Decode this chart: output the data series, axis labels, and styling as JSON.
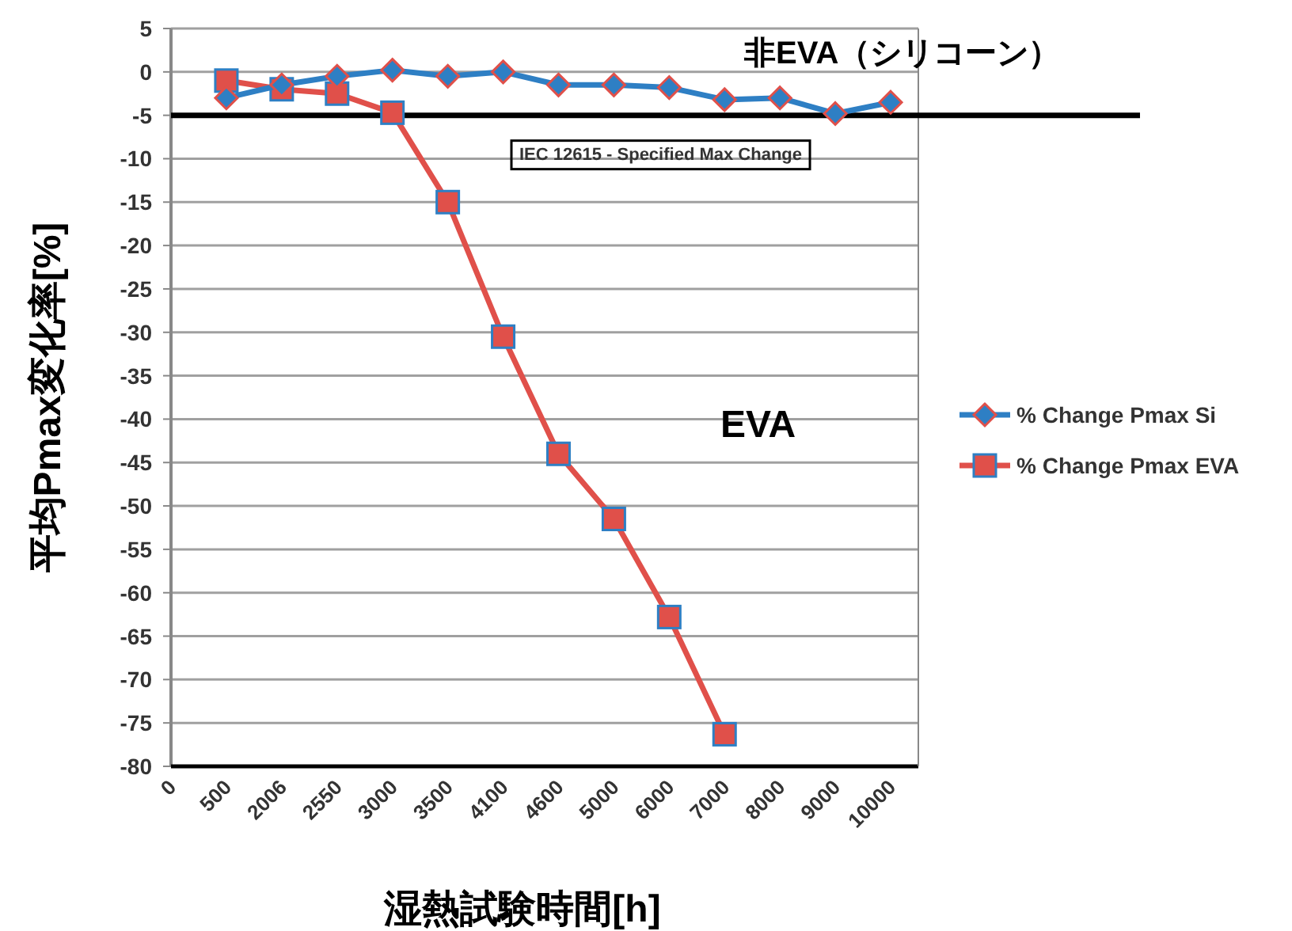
{
  "chart_data": {
    "type": "line",
    "xlabel": "湿熱試験時間[h]",
    "ylabel": "平均Pmax変化率[%]",
    "categories": [
      "0",
      "500",
      "2006",
      "2550",
      "3000",
      "3500",
      "4100",
      "4600",
      "5000",
      "6000",
      "7000",
      "8000",
      "9000",
      "10000"
    ],
    "series": [
      {
        "name": "% Change Pmax Si",
        "color": "#2e7fc4",
        "marker": "diamond",
        "values": [
          null,
          -3,
          -1.5,
          -0.5,
          0.2,
          -0.5,
          0,
          -1.5,
          -1.5,
          -1.8,
          -3.2,
          -3,
          -4.8,
          -3.5
        ]
      },
      {
        "name": "% Change Pmax EVA",
        "color": "#e0504a",
        "marker": "square",
        "values": [
          null,
          -1,
          -2,
          -2.5,
          -4.7,
          -15,
          -30.5,
          -44,
          -51.5,
          -62.8,
          -76.3,
          null,
          null,
          null
        ]
      }
    ],
    "ylim": [
      -80,
      5
    ],
    "yticks": [
      5,
      0,
      -5,
      -10,
      -15,
      -20,
      -25,
      -30,
      -35,
      -40,
      -45,
      -50,
      -55,
      -60,
      -65,
      -70,
      -75,
      -80
    ],
    "ref_lines": [
      {
        "axis": "y",
        "value": -5,
        "label": "IEC 12615 - Specified Max Change",
        "color": "#000000"
      }
    ],
    "annotations": [
      "非EVA（シリコーン）",
      "EVA"
    ],
    "grid": "y",
    "legend": "right"
  }
}
